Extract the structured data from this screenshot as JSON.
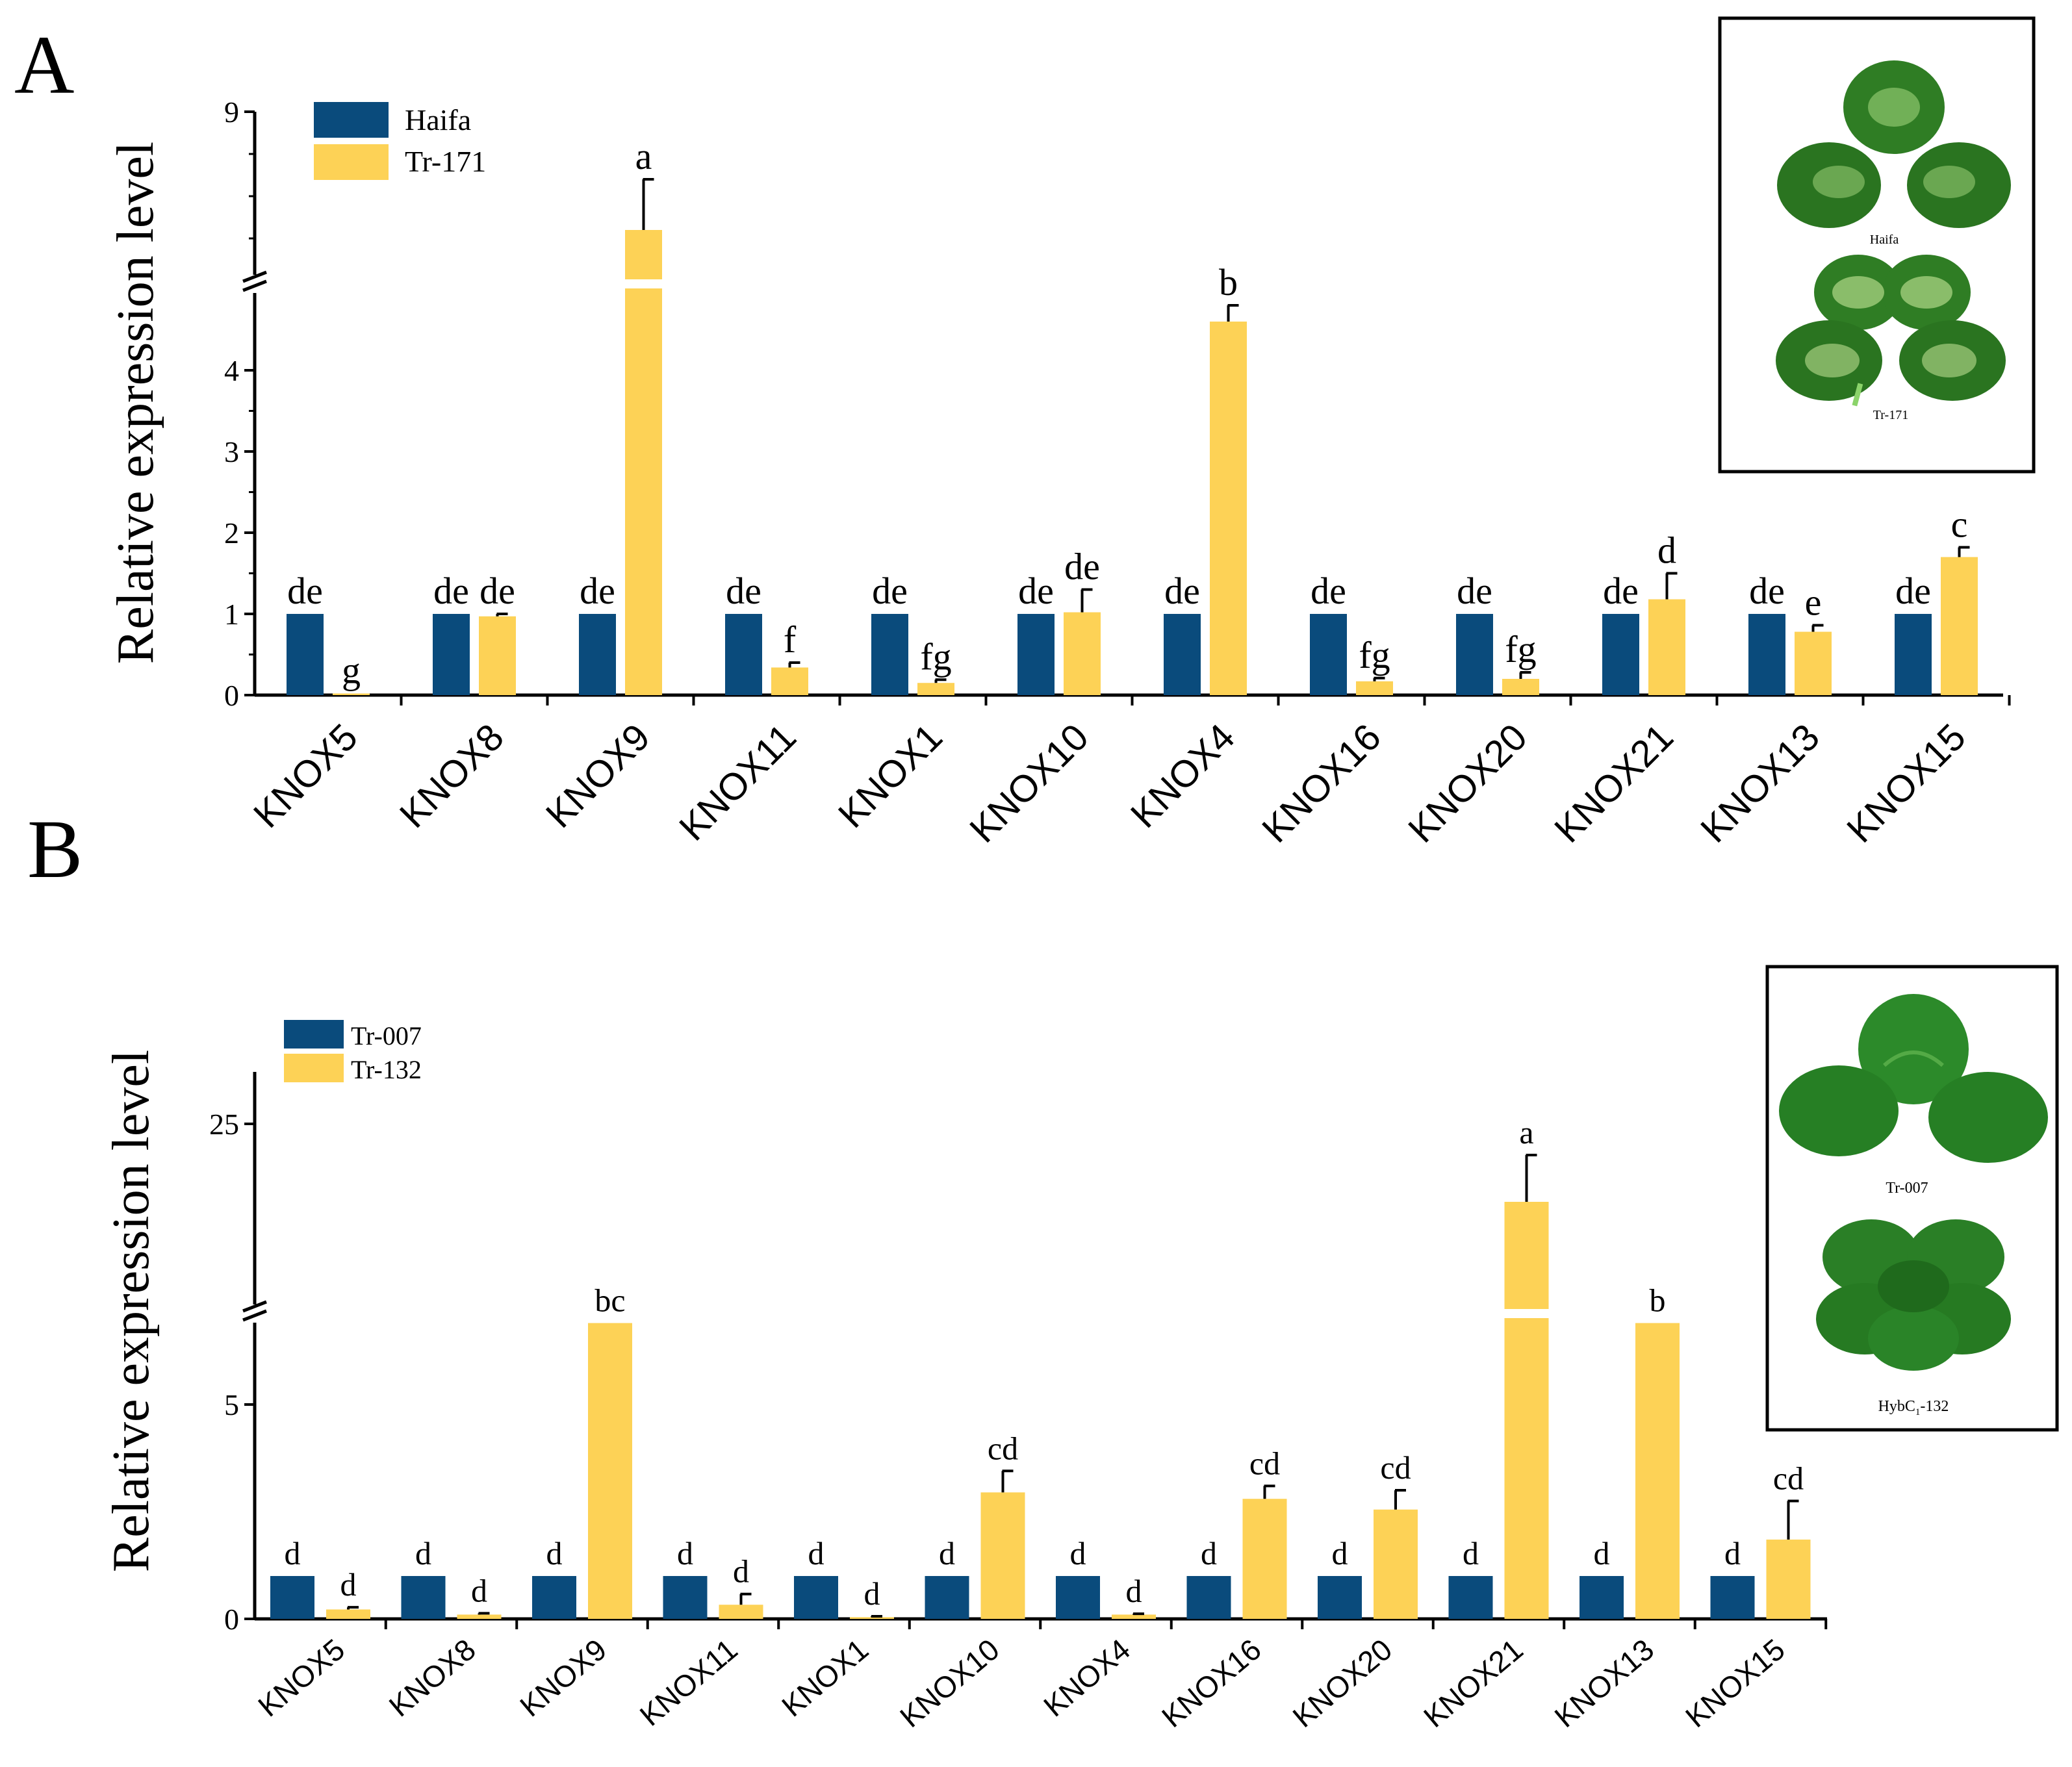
{
  "chart_data": [
    {
      "type": "bar",
      "panel": "A",
      "ylabel": "Relative expression level",
      "axis_break": true,
      "ylim_lower": [
        0,
        5
      ],
      "ylim_upper_top": 9,
      "yticks": [
        "0",
        "1",
        "2",
        "3",
        "4",
        "9"
      ],
      "categories": [
        "KNOX5",
        "KNOX8",
        "KNOX9",
        "KNOX11",
        "KNOX1",
        "KNOX10",
        "KNOX4",
        "KNOX16",
        "KNOX20",
        "KNOX21",
        "KNOX13",
        "KNOX15"
      ],
      "series": [
        {
          "name": "Haifa",
          "color": "#0a4b7c",
          "values": [
            1,
            1,
            1,
            1,
            1,
            1,
            1,
            1,
            1,
            1,
            1,
            1
          ],
          "errors": [
            0,
            0,
            0,
            0,
            0,
            0,
            0,
            0,
            0,
            0,
            0,
            0
          ],
          "labels": [
            "de",
            "de",
            "de",
            "de",
            "de",
            "de",
            "de",
            "de",
            "de",
            "de",
            "de",
            "de"
          ]
        },
        {
          "name": "Tr-171",
          "color": "#fdd256",
          "values": [
            0.02,
            0.97,
            7.6,
            0.34,
            0.15,
            1.02,
            4.6,
            0.17,
            0.2,
            1.18,
            0.78,
            1.7
          ],
          "errors": [
            0,
            0.03,
            0.6,
            0.06,
            0.04,
            0.28,
            0.2,
            0.04,
            0.08,
            0.32,
            0.08,
            0.12
          ],
          "labels": [
            "g",
            "de",
            "a",
            "f",
            "fg",
            "de",
            "b",
            "fg",
            "fg",
            "d",
            "e",
            "c"
          ]
        }
      ],
      "legend": "top-left",
      "inset": {
        "captions": [
          "Haifa",
          "Tr-171"
        ]
      }
    },
    {
      "type": "bar",
      "panel": "B",
      "ylabel": "Relative expression level",
      "axis_break": true,
      "ylim_lower": [
        0,
        7
      ],
      "ylim_upper_top": 30,
      "yticks": [
        "0",
        "5",
        "25"
      ],
      "categories": [
        "KNOX5",
        "KNOX8",
        "KNOX9",
        "KNOX11",
        "KNOX1",
        "KNOX10",
        "KNOX4",
        "KNOX16",
        "KNOX20",
        "KNOX21",
        "KNOX13",
        "KNOX15"
      ],
      "series": [
        {
          "name": "Tr-007",
          "color": "#0a4b7c",
          "values": [
            1,
            1,
            1,
            1,
            1,
            1,
            1,
            1,
            1,
            1,
            1,
            1
          ],
          "errors": [
            0,
            0,
            0,
            0,
            0,
            0,
            0,
            0,
            0,
            0,
            0,
            0
          ],
          "labels": [
            "d",
            "d",
            "d",
            "d",
            "d",
            "d",
            "d",
            "d",
            "d",
            "d",
            "d",
            "d"
          ]
        },
        {
          "name": "Tr-132",
          "color": "#fdd256",
          "values": [
            0.22,
            0.1,
            6.9,
            0.33,
            0.04,
            2.95,
            0.1,
            2.8,
            2.55,
            17.5,
            6.9,
            1.85
          ],
          "errors": [
            0.05,
            0.03,
            0,
            0.25,
            0.02,
            0.5,
            0.02,
            0.3,
            0.45,
            4.5,
            0,
            0.9
          ],
          "labels": [
            "d",
            "d",
            "bc",
            "d",
            "d",
            "cd",
            "d",
            "cd",
            "cd",
            "a",
            "b",
            "cd"
          ]
        }
      ],
      "legend": "top-left",
      "inset": {
        "captions": [
          "Tr-007",
          "HybC",
          "1",
          "-132"
        ]
      }
    }
  ],
  "panelA": {
    "letter": "A"
  },
  "panelB": {
    "letter": "B"
  }
}
